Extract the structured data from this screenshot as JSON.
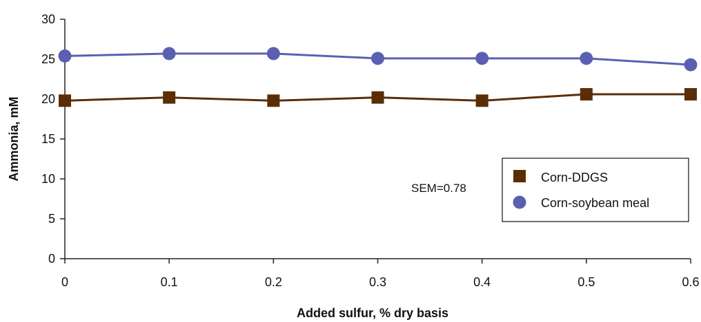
{
  "chart_data": {
    "type": "line",
    "x": [
      0,
      0.1,
      0.2,
      0.3,
      0.4,
      0.5,
      0.6
    ],
    "x_tick_labels": [
      "0",
      "0.1",
      "0.2",
      "0.3",
      "0.4",
      "0.5",
      "0.6"
    ],
    "y_ticks": [
      0,
      5,
      10,
      15,
      20,
      25,
      30
    ],
    "xlim": [
      0,
      0.6
    ],
    "ylim": [
      0,
      30
    ],
    "xlabel": "Added sulfur, % dry basis",
    "ylabel": "Ammonia, mM",
    "grid": false,
    "legend_position": "right",
    "annotation": "SEM=0.78",
    "series": [
      {
        "name": "Corn-DDGS",
        "marker": "square",
        "color": "#5a2d06",
        "values": [
          19.8,
          20.2,
          19.8,
          20.2,
          19.8,
          20.6,
          20.6
        ]
      },
      {
        "name": "Corn-soybean meal",
        "marker": "circle",
        "color": "#5b5fb2",
        "values": [
          25.4,
          25.7,
          25.7,
          25.1,
          25.1,
          25.1,
          24.3
        ]
      }
    ]
  }
}
